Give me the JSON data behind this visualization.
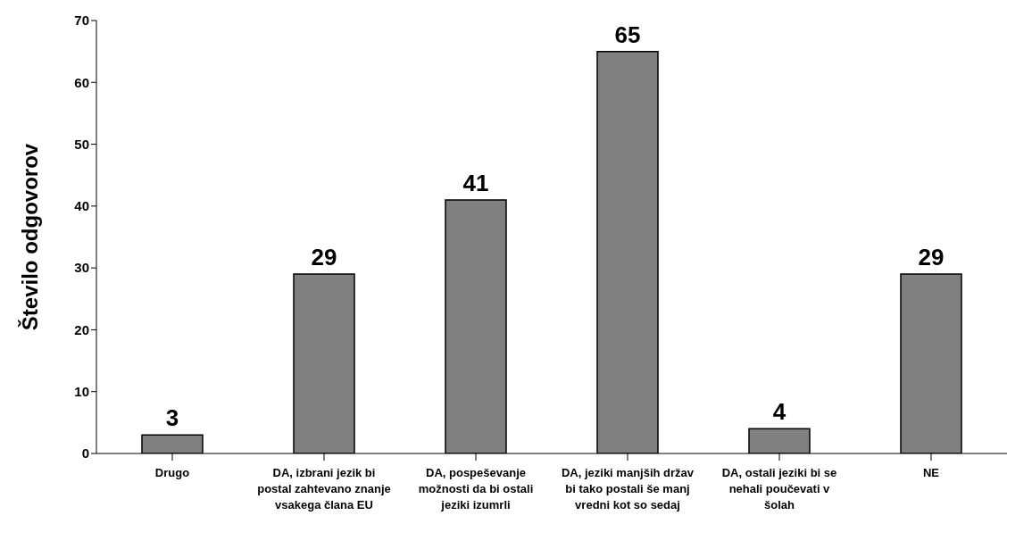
{
  "chart_data": {
    "type": "bar",
    "ylabel": "Število odgovorov",
    "categories": [
      "Drugo",
      "DA, izbrani jezik bi postal zahtevano znanje vsakega člana EU",
      "DA, pospeševanje možnosti da bi ostali jeziki izumrli",
      "DA, jeziki manjših držav bi tako postali še manj vredni kot so sedaj",
      "DA, ostali jeziki bi se nehali poučevati v šolah",
      "NE"
    ],
    "values": [
      3,
      29,
      41,
      65,
      4,
      29
    ],
    "color": "#808080",
    "ylim": [
      0,
      70
    ],
    "yticks": [
      0,
      10,
      20,
      30,
      40,
      50,
      60,
      70
    ],
    "grid": false,
    "data_labels": true
  }
}
